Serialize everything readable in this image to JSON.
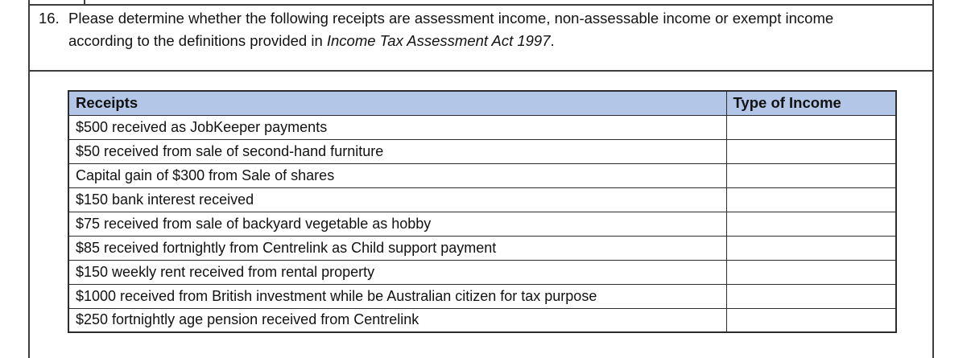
{
  "page": {
    "background": "#ffffff",
    "frame_border_color": "#3d3d3d"
  },
  "question": {
    "number": "16.",
    "text_before_act": "Please determine whether the following receipts are assessment income, non-assessable income or exempt income according to the definitions provided in ",
    "act_title_italic": "Income Tax Assessment Act 1997",
    "text_after_act": "."
  },
  "table": {
    "header_bg": "#b4c6e7",
    "border_color": "#2c2c2c",
    "columns": [
      "Receipts",
      "Type of Income"
    ],
    "rows": [
      {
        "receipt": "$500 received as JobKeeper payments",
        "type": ""
      },
      {
        "receipt": "$50 received from sale of second-hand furniture",
        "type": ""
      },
      {
        "receipt": "Capital gain of $300 from Sale of shares",
        "type": ""
      },
      {
        "receipt": "$150 bank interest received",
        "type": ""
      },
      {
        "receipt": "$75 received from sale of backyard vegetable as hobby",
        "type": ""
      },
      {
        "receipt": "$85 received fortnightly from Centrelink as Child support payment",
        "type": ""
      },
      {
        "receipt": "$150 weekly rent received from rental property",
        "type": ""
      },
      {
        "receipt": "$1000 received from British investment while be Australian citizen for tax purpose",
        "type": ""
      },
      {
        "receipt": "$250 fortnightly age pension received from Centrelink",
        "type": ""
      }
    ]
  }
}
